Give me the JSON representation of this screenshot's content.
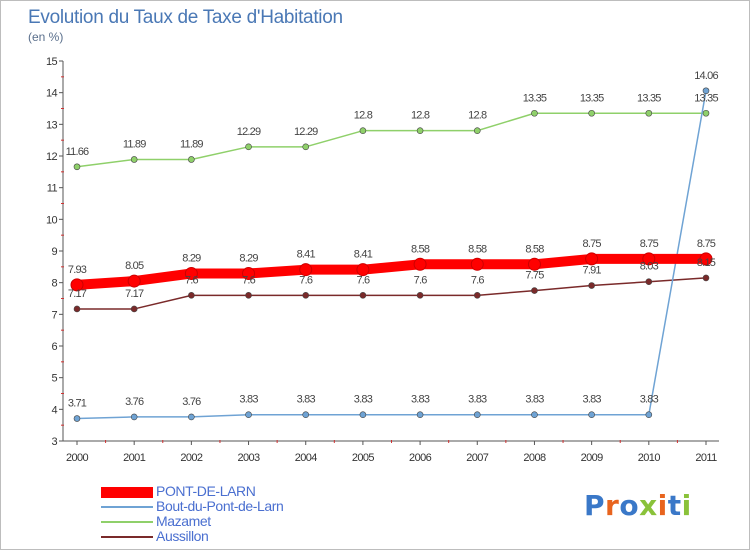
{
  "title": "Evolution du Taux de Taxe d'Habitation",
  "subtitle": "(en %)",
  "logo": {
    "text": "Proxiti",
    "letter_colors": [
      "#3a78c8",
      "#e8641e",
      "#3a78c8",
      "#8ac23a",
      "#e8641e",
      "#3a78c8",
      "#8ac23a"
    ]
  },
  "chart_data": {
    "type": "line",
    "x": [
      "2000",
      "2001",
      "2002",
      "2003",
      "2004",
      "2005",
      "2006",
      "2007",
      "2008",
      "2009",
      "2010",
      "2011"
    ],
    "ylim": [
      3,
      15
    ],
    "yticks": [
      3,
      4,
      5,
      6,
      7,
      8,
      9,
      10,
      11,
      12,
      13,
      14,
      15
    ],
    "grid": false,
    "legend_position": "bottom-left",
    "series": [
      {
        "name": "PONT-DE-LARN",
        "color": "#ff0000",
        "values": [
          7.93,
          8.05,
          8.29,
          8.29,
          8.41,
          8.41,
          8.58,
          8.58,
          8.58,
          8.75,
          8.75,
          8.75
        ],
        "labels": [
          "7.93",
          "8.05",
          "8.29",
          "8.29",
          "8.41",
          "8.41",
          "8.58",
          "8.58",
          "8.58",
          "8.75",
          "8.75",
          "8.75"
        ]
      },
      {
        "name": "Bout-du-Pont-de-Larn",
        "color": "#6fa3d4",
        "values": [
          3.71,
          3.76,
          3.76,
          3.83,
          3.83,
          3.83,
          3.83,
          3.83,
          3.83,
          3.83,
          3.83,
          14.06
        ],
        "labels": [
          "3.71",
          "3.76",
          "3.76",
          "3.83",
          "3.83",
          "3.83",
          "3.83",
          "3.83",
          "3.83",
          "3.83",
          "3.83",
          "14.06"
        ]
      },
      {
        "name": "Mazamet",
        "color": "#8fd06a",
        "values": [
          11.66,
          11.89,
          11.89,
          12.29,
          12.29,
          12.8,
          12.8,
          12.8,
          13.35,
          13.35,
          13.35,
          13.35
        ],
        "labels": [
          "11.66",
          "11.89",
          "11.89",
          "12.29",
          "12.29",
          "12.8",
          "12.8",
          "12.8",
          "13.35",
          "13.35",
          "13.35",
          "13.35"
        ]
      },
      {
        "name": "Aussillon",
        "color": "#7a2a2a",
        "values": [
          7.17,
          7.17,
          7.6,
          7.6,
          7.6,
          7.6,
          7.6,
          7.6,
          7.75,
          7.91,
          8.03,
          8.15
        ],
        "labels": [
          "7.17",
          "7.17",
          "7.6",
          "7.6",
          "7.6",
          "7.6",
          "7.6",
          "7.6",
          "7.75",
          "7.91",
          "8.03",
          "8.15"
        ]
      }
    ]
  }
}
